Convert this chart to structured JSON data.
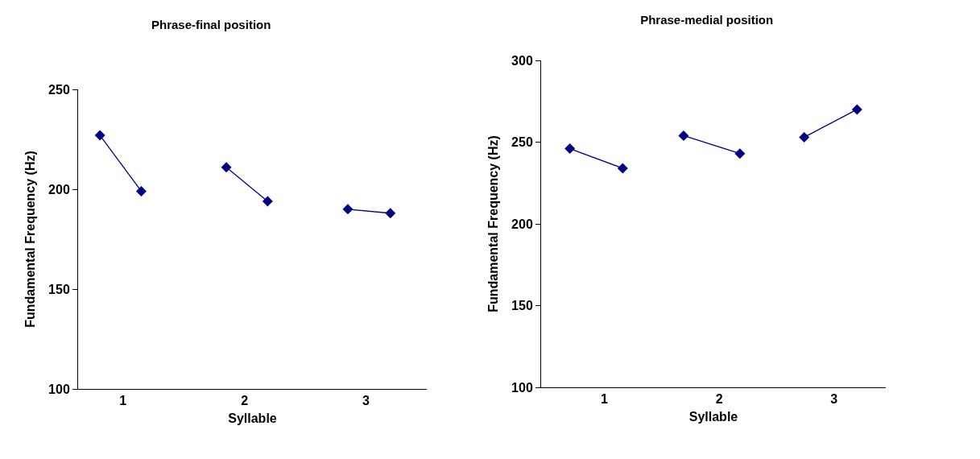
{
  "chart_data": [
    {
      "type": "line",
      "title": "Phrase-final position",
      "xlabel": "Syllable",
      "ylabel": "Fundamental Frequency (Hz)",
      "xlim": [
        0.63,
        3.5
      ],
      "xticks": [
        1,
        2,
        3
      ],
      "ylim": [
        100,
        250
      ],
      "yticks": [
        100,
        150,
        200,
        250
      ],
      "grid": false,
      "marker": "diamond",
      "line_style": "solid",
      "series": [
        {
          "color": "#000080",
          "x": [
            0.81,
            1.15
          ],
          "values": [
            227,
            199
          ]
        },
        {
          "color": "#000080",
          "x": [
            1.85,
            2.19
          ],
          "values": [
            211,
            194
          ]
        },
        {
          "color": "#000080",
          "x": [
            2.85,
            3.2
          ],
          "values": [
            190,
            188
          ]
        }
      ]
    },
    {
      "type": "line",
      "title": "Phrase-medial position",
      "xlabel": "Syllable",
      "ylabel": "Fundamental Frequency (Hz)",
      "xlim": [
        0.45,
        3.45
      ],
      "xticks": [
        1,
        2,
        3
      ],
      "ylim": [
        100,
        300
      ],
      "yticks": [
        100,
        150,
        200,
        250,
        300
      ],
      "grid": false,
      "marker": "diamond",
      "line_style": "solid",
      "series": [
        {
          "color": "#000080",
          "x": [
            0.7,
            1.16
          ],
          "values": [
            246,
            234
          ]
        },
        {
          "color": "#000080",
          "x": [
            1.69,
            2.18
          ],
          "values": [
            254,
            243
          ]
        },
        {
          "color": "#000080",
          "x": [
            2.74,
            3.2
          ],
          "values": [
            253,
            270
          ]
        }
      ]
    }
  ]
}
